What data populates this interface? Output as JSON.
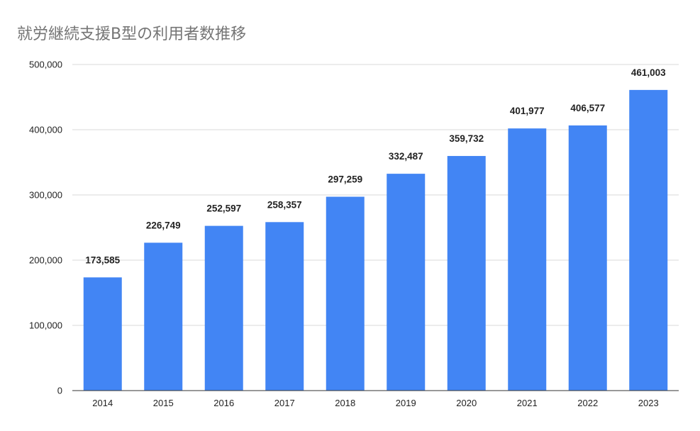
{
  "chart_data": {
    "type": "bar",
    "title": "就労継続支援B型の利用者数推移",
    "xlabel": "",
    "ylabel": "",
    "categories": [
      "2014",
      "2015",
      "2016",
      "2017",
      "2018",
      "2019",
      "2020",
      "2021",
      "2022",
      "2023"
    ],
    "values": [
      173585,
      226749,
      252597,
      258357,
      297259,
      332487,
      359732,
      401977,
      406577,
      461003
    ],
    "data_labels": [
      "173,585",
      "226,749",
      "252,597",
      "258,357",
      "297,259",
      "332,487",
      "359,732",
      "401,977",
      "406,577",
      "461,003"
    ],
    "ylim": [
      0,
      500000
    ],
    "yticks": [
      0,
      100000,
      200000,
      300000,
      400000,
      500000
    ],
    "ytick_labels": [
      "0",
      "100,000",
      "200,000",
      "300,000",
      "400,000",
      "500,000"
    ],
    "grid": true,
    "legend": "none",
    "bar_color": "#4285f4"
  }
}
